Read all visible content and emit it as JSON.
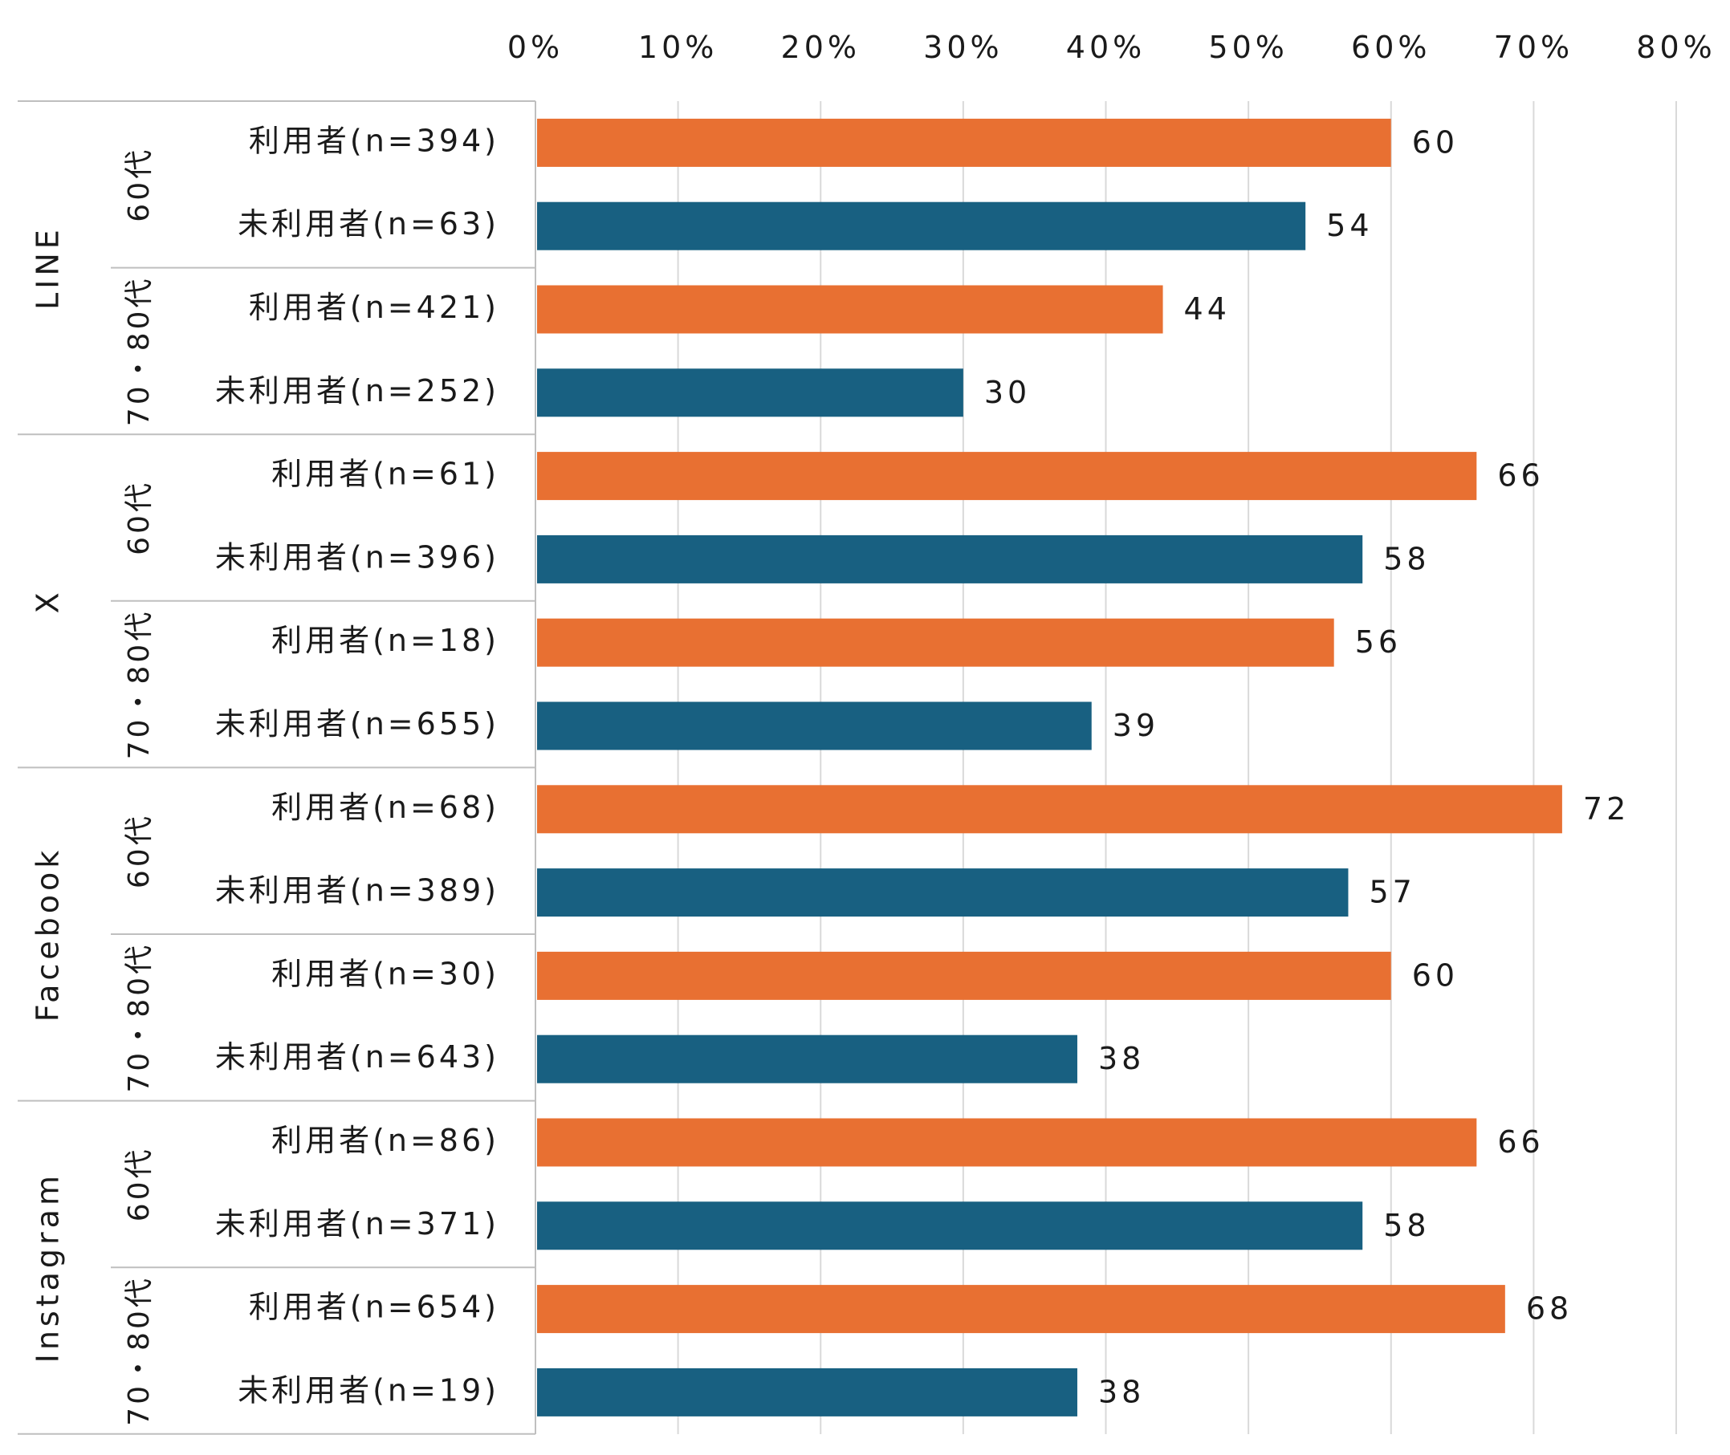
{
  "chart_data": {
    "type": "bar",
    "orientation": "horizontal",
    "xlim": [
      0,
      80
    ],
    "tick_labels": [
      "0%",
      "10%",
      "20%",
      "30%",
      "40%",
      "50%",
      "60%",
      "70%",
      "80%"
    ],
    "ticks": [
      0,
      10,
      20,
      30,
      40,
      50,
      60,
      70,
      80
    ],
    "grid": true,
    "colors": {
      "user": "#E87032",
      "nonuser": "#186081"
    },
    "groups": [
      {
        "platform": "LINE",
        "ages": [
          {
            "age": "60代",
            "bars": [
              {
                "label": "利用者(n=394)",
                "type": "user",
                "value": 60
              },
              {
                "label": "未利用者(n=63)",
                "type": "nonuser",
                "value": 54
              }
            ]
          },
          {
            "age": "70・80代",
            "bars": [
              {
                "label": "利用者(n=421)",
                "type": "user",
                "value": 44
              },
              {
                "label": "未利用者(n=252)",
                "type": "nonuser",
                "value": 30
              }
            ]
          }
        ]
      },
      {
        "platform": "X",
        "ages": [
          {
            "age": "60代",
            "bars": [
              {
                "label": "利用者(n=61)",
                "type": "user",
                "value": 66
              },
              {
                "label": "未利用者(n=396)",
                "type": "nonuser",
                "value": 58
              }
            ]
          },
          {
            "age": "70・80代",
            "bars": [
              {
                "label": "利用者(n=18)",
                "type": "user",
                "value": 56
              },
              {
                "label": "未利用者(n=655)",
                "type": "nonuser",
                "value": 39
              }
            ]
          }
        ]
      },
      {
        "platform": "Facebook",
        "ages": [
          {
            "age": "60代",
            "bars": [
              {
                "label": "利用者(n=68)",
                "type": "user",
                "value": 72
              },
              {
                "label": "未利用者(n=389)",
                "type": "nonuser",
                "value": 57
              }
            ]
          },
          {
            "age": "70・80代",
            "bars": [
              {
                "label": "利用者(n=30)",
                "type": "user",
                "value": 60
              },
              {
                "label": "未利用者(n=643)",
                "type": "nonuser",
                "value": 38
              }
            ]
          }
        ]
      },
      {
        "platform": "Instagram",
        "ages": [
          {
            "age": "60代",
            "bars": [
              {
                "label": "利用者(n=86)",
                "type": "user",
                "value": 66
              },
              {
                "label": "未利用者(n=371)",
                "type": "nonuser",
                "value": 58
              }
            ]
          },
          {
            "age": "70・80代",
            "bars": [
              {
                "label": "利用者(n=654)",
                "type": "user",
                "value": 68
              },
              {
                "label": "未利用者(n=19)",
                "type": "nonuser",
                "value": 38
              }
            ]
          }
        ]
      }
    ]
  }
}
